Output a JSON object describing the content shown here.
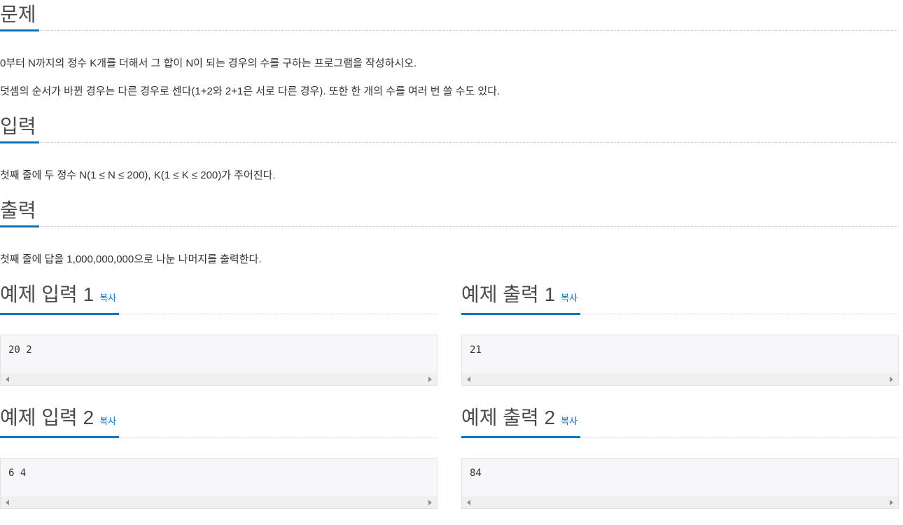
{
  "colors": {
    "accent_underline": "#0f76bc",
    "link_blue": "#0076c0",
    "heading_text": "#4a4a4a",
    "body_text": "#333333",
    "sample_box_bg": "#f7f7f9",
    "sample_box_border": "#e1e1e8",
    "scrollbar_track": "#f0f0f1"
  },
  "sections": {
    "problem": {
      "title": "문제",
      "paragraphs": [
        "0부터 N까지의 정수 K개를 더해서 그 합이 N이 되는 경우의 수를 구하는 프로그램을 작성하시오.",
        "덧셈의 순서가 바뀐 경우는 다른 경우로 센다(1+2와 2+1은 서로 다른 경우). 또한 한 개의 수를 여러 번 쓸 수도 있다."
      ]
    },
    "input": {
      "title": "입력",
      "paragraphs": [
        "첫째 줄에 두 정수 N(1 ≤ N ≤ 200), K(1 ≤ K ≤ 200)가 주어진다."
      ]
    },
    "output": {
      "title": "출력",
      "paragraphs": [
        "첫째 줄에 답을 1,000,000,000으로 나눈 나머지를 출력한다."
      ]
    }
  },
  "samples": [
    {
      "title": "예제 입력 1",
      "copy_label": "복사",
      "value": "20 2"
    },
    {
      "title": "예제 출력 1",
      "copy_label": "복사",
      "value": "21"
    },
    {
      "title": "예제 입력 2",
      "copy_label": "복사",
      "value": "6 4"
    },
    {
      "title": "예제 출력 2",
      "copy_label": "복사",
      "value": "84"
    }
  ]
}
